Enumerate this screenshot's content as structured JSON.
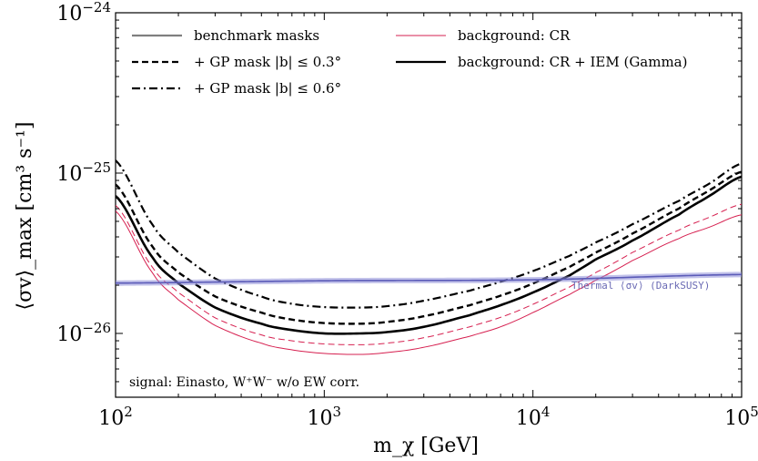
{
  "chart_data": {
    "type": "line",
    "xlabel": "m_χ [GeV]",
    "ylabel": "⟨σv⟩_max [cm³ s⁻¹]",
    "xscale": "log",
    "yscale": "log",
    "xlim": [
      100,
      100000
    ],
    "ylim": [
      4e-27,
      1e-24
    ],
    "xticks": [
      {
        "value": 100,
        "mantissa": "10",
        "exponent": "2"
      },
      {
        "value": 1000,
        "mantissa": "10",
        "exponent": "3"
      },
      {
        "value": 10000,
        "mantissa": "10",
        "exponent": "4"
      },
      {
        "value": 100000,
        "mantissa": "10",
        "exponent": "5"
      }
    ],
    "yticks": [
      {
        "value": 1e-26,
        "mantissa": "10",
        "exponent": "−26"
      },
      {
        "value": 1e-25,
        "mantissa": "10",
        "exponent": "−25"
      },
      {
        "value": 1e-24,
        "mantissa": "10",
        "exponent": "−24"
      }
    ],
    "grid": false,
    "legend": {
      "placement": "top",
      "entries": [
        {
          "label": "benchmark masks",
          "color": "#7f7f7f",
          "dash": "solid"
        },
        {
          "label": "+ GP mask |b| ≤ 0.3°",
          "color": "#000000",
          "dash": "dashed"
        },
        {
          "label": "+ GP mask |b| ≤ 0.6°",
          "color": "#000000",
          "dash": "dashdot"
        },
        {
          "label": "background: CR",
          "color": "#d62050",
          "dash": "solid"
        },
        {
          "label": "background: CR + IEM (Gamma)",
          "color": "#000000",
          "dash": "solid"
        }
      ]
    },
    "series": [
      {
        "group": "CR + IEM (Gamma)",
        "mask": "benchmark",
        "color": "#000000",
        "dash": "solid",
        "width": 2.6,
        "x": [
          100,
          150,
          200,
          300,
          500,
          700,
          1000,
          1500,
          2000,
          3000,
          5000,
          7000,
          10000,
          15000,
          20000,
          30000,
          50000,
          70000,
          100000
        ],
        "y": [
          7.2e-26,
          3e-26,
          2.05e-26,
          1.45e-26,
          1.15e-26,
          1.05e-26,
          1e-26,
          1e-26,
          1.02e-26,
          1.1e-26,
          1.3e-26,
          1.5e-26,
          1.8e-26,
          2.3e-26,
          2.9e-26,
          3.8e-26,
          5.5e-26,
          7.2e-26,
          9.5e-26
        ]
      },
      {
        "group": "CR + IEM (Gamma)",
        "mask": "|b| ≤ 0.3°",
        "color": "#000000",
        "dash": "dashed",
        "width": 2.4,
        "x": [
          100,
          150,
          200,
          300,
          500,
          700,
          1000,
          1500,
          2000,
          3000,
          5000,
          7000,
          10000,
          15000,
          20000,
          30000,
          50000,
          70000,
          100000
        ],
        "y": [
          8.5e-26,
          3.5e-26,
          2.4e-26,
          1.7e-26,
          1.35e-26,
          1.22e-26,
          1.16e-26,
          1.15e-26,
          1.18e-26,
          1.28e-26,
          1.5e-26,
          1.72e-26,
          2.05e-26,
          2.6e-26,
          3.2e-26,
          4.2e-26,
          6e-26,
          7.8e-26,
          1.02e-25
        ]
      },
      {
        "group": "CR + IEM (Gamma)",
        "mask": "|b| ≤ 0.6°",
        "color": "#000000",
        "dash": "dashdot",
        "width": 2.2,
        "x": [
          100,
          150,
          200,
          300,
          500,
          700,
          1000,
          1500,
          2000,
          3000,
          5000,
          7000,
          10000,
          15000,
          20000,
          30000,
          50000,
          70000,
          100000
        ],
        "y": [
          1.2e-25,
          4.8e-26,
          3.2e-26,
          2.2e-26,
          1.7e-26,
          1.53e-26,
          1.46e-26,
          1.45e-26,
          1.48e-26,
          1.6e-26,
          1.85e-26,
          2.1e-26,
          2.45e-26,
          3.05e-26,
          3.7e-26,
          4.8e-26,
          6.7e-26,
          8.6e-26,
          1.15e-25
        ]
      },
      {
        "group": "CR",
        "mask": "benchmark",
        "color": "#d62050",
        "dash": "solid",
        "width": 1.0,
        "x": [
          100,
          150,
          200,
          300,
          500,
          700,
          1000,
          1500,
          2000,
          3000,
          5000,
          7000,
          10000,
          15000,
          20000,
          30000,
          50000,
          70000,
          100000
        ],
        "y": [
          5.8e-26,
          2.4e-26,
          1.62e-26,
          1.12e-26,
          8.7e-27,
          7.9e-27,
          7.5e-27,
          7.4e-27,
          7.6e-27,
          8.2e-27,
          9.6e-27,
          1.1e-26,
          1.35e-26,
          1.75e-26,
          2.15e-26,
          2.85e-26,
          3.9e-26,
          4.6e-26,
          5.5e-26
        ]
      },
      {
        "group": "CR",
        "mask": "|b| ≤ 0.3°",
        "color": "#d62050",
        "dash": "dashed",
        "width": 1.0,
        "x": [
          100,
          150,
          200,
          300,
          500,
          700,
          1000,
          1500,
          2000,
          3000,
          5000,
          7000,
          10000,
          15000,
          20000,
          30000,
          50000,
          70000,
          100000
        ],
        "y": [
          6.3e-26,
          2.6e-26,
          1.8e-26,
          1.25e-26,
          9.8e-27,
          9e-27,
          8.6e-27,
          8.5e-27,
          8.7e-27,
          9.4e-27,
          1.1e-26,
          1.26e-26,
          1.52e-26,
          1.95e-26,
          2.4e-26,
          3.2e-26,
          4.4e-26,
          5.3e-26,
          6.4e-26
        ]
      },
      {
        "group": "thermal",
        "mask": "",
        "color": "#5b5bb8",
        "dash": "band",
        "width": 5,
        "x": [
          100,
          1000,
          10000,
          100000
        ],
        "y": [
          2.06e-26,
          2.13e-26,
          2.16e-26,
          2.33e-26
        ]
      }
    ],
    "annotations": {
      "thermal_label_prefix": "Thermal ⟨σv⟩ ",
      "thermal_label_code": "(DarkSUSY)",
      "signal_label": "signal: Einasto, W⁺W⁻ w/o EW corr."
    }
  }
}
